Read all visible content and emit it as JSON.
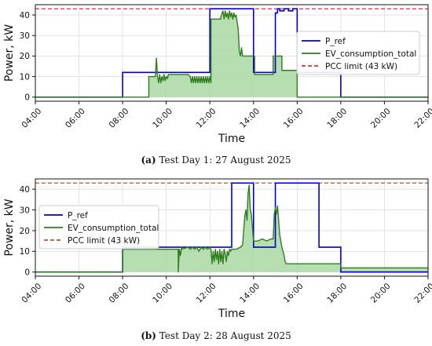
{
  "figure": {
    "charts": [
      {
        "caption_label": "(a)",
        "caption_text": " Test Day 1: 27 August 2025",
        "legend_position": "right"
      },
      {
        "caption_label": "(b)",
        "caption_text": " Test Day 2: 28 August 2025",
        "legend_position": "upper-left"
      }
    ]
  },
  "colors": {
    "p_ref": "#0000cc",
    "ev_line": "#2e7d1f",
    "ev_fill": "#a9d8a3",
    "pcc_a": "#e8293b",
    "pcc_b": "#b5552b"
  },
  "chart_data": [
    {
      "type": "line",
      "xlabel": "Time",
      "ylabel": "Power, kW",
      "xlim": [
        4,
        22
      ],
      "ylim": [
        -2,
        45
      ],
      "xticks": [
        4,
        6,
        8,
        10,
        12,
        14,
        16,
        18,
        20,
        22
      ],
      "xtick_labels": [
        "04:00",
        "06:00",
        "08:00",
        "10:00",
        "12:00",
        "14:00",
        "16:00",
        "18:00",
        "20:00",
        "22:00"
      ],
      "yticks": [
        0,
        10,
        20,
        30,
        40
      ],
      "ytick_labels": [
        "0",
        "10",
        "20",
        "30",
        "40"
      ],
      "grid": true,
      "series": [
        {
          "name": "P_ref",
          "x": [
            4,
            8,
            8,
            12,
            12,
            14,
            14,
            15.0,
            15.0,
            15.1,
            15.1,
            15.2,
            15.2,
            15.4,
            15.4,
            15.6,
            15.6,
            15.8,
            15.8,
            16.0,
            16.0,
            18.0,
            18.0,
            22
          ],
          "values": [
            0,
            0,
            12,
            12,
            43,
            43,
            12,
            12,
            41,
            41,
            43,
            43,
            42,
            42,
            43,
            43,
            42,
            42,
            43,
            43,
            12,
            12,
            0,
            0
          ]
        },
        {
          "name": "EV_consumption_total",
          "x": [
            4,
            9.2,
            9.2,
            9.5,
            9.55,
            9.6,
            9.65,
            9.7,
            9.75,
            9.8,
            9.85,
            9.9,
            9.95,
            10.0,
            10.05,
            10.1,
            10.2,
            10.4,
            10.6,
            10.8,
            11.0,
            11.1,
            11.15,
            11.2,
            11.25,
            11.3,
            11.35,
            11.4,
            11.45,
            11.5,
            11.55,
            11.6,
            11.65,
            11.7,
            11.75,
            11.8,
            11.85,
            11.9,
            11.95,
            12.0,
            12.05,
            12.05,
            12.5,
            12.5,
            12.6,
            12.65,
            12.7,
            12.75,
            12.8,
            12.85,
            12.9,
            12.95,
            13.0,
            13.05,
            13.1,
            13.15,
            13.2,
            13.3,
            13.35,
            13.4,
            13.45,
            13.5,
            13.55,
            14.05,
            14.05,
            14.9,
            14.9,
            15.3,
            15.3,
            16.0,
            16.0,
            22
          ],
          "values": [
            0,
            0,
            10,
            10,
            19,
            10,
            7,
            11,
            7,
            10,
            8,
            11,
            8,
            10,
            9,
            11,
            11,
            11,
            11,
            11,
            11,
            10,
            7,
            10,
            7,
            10,
            7,
            10,
            7,
            10,
            7,
            10,
            7,
            10,
            7,
            10,
            7,
            10,
            7,
            10,
            7,
            38,
            38,
            39,
            42,
            38,
            42,
            39,
            41,
            38,
            42,
            39,
            41,
            38,
            41,
            39,
            40,
            33,
            22,
            20,
            24,
            20,
            20,
            20,
            11,
            11,
            20,
            20,
            13,
            13,
            0,
            0
          ]
        },
        {
          "name": "PCC limit (43 kW)",
          "x": [
            4,
            22
          ],
          "values": [
            43,
            43
          ]
        }
      ]
    },
    {
      "type": "line",
      "xlabel": "Time",
      "ylabel": "Power, kW",
      "xlim": [
        4,
        22
      ],
      "ylim": [
        -2,
        45
      ],
      "xticks": [
        4,
        6,
        8,
        10,
        12,
        14,
        16,
        18,
        20,
        22
      ],
      "xtick_labels": [
        "04:00",
        "06:00",
        "08:00",
        "10:00",
        "12:00",
        "14:00",
        "16:00",
        "18:00",
        "20:00",
        "22:00"
      ],
      "yticks": [
        0,
        10,
        20,
        30,
        40
      ],
      "ytick_labels": [
        "0",
        "10",
        "20",
        "30",
        "40"
      ],
      "grid": true,
      "series": [
        {
          "name": "P_ref",
          "x": [
            4,
            8,
            8,
            13,
            13,
            14,
            14,
            15,
            15,
            17,
            17,
            18,
            18,
            22
          ],
          "values": [
            0,
            0,
            12,
            12,
            43,
            43,
            12,
            12,
            43,
            43,
            12,
            12,
            0,
            0
          ]
        },
        {
          "name": "EV_consumption_total",
          "x": [
            4,
            8,
            8,
            10.55,
            10.55,
            10.6,
            10.65,
            10.7,
            10.7,
            11.0,
            11.1,
            11.2,
            11.3,
            11.4,
            11.5,
            11.6,
            11.7,
            11.8,
            11.9,
            12.0,
            12.05,
            12.1,
            12.15,
            12.2,
            12.25,
            12.3,
            12.35,
            12.4,
            12.45,
            12.5,
            12.55,
            12.6,
            12.65,
            12.7,
            12.75,
            12.8,
            12.85,
            12.9,
            12.95,
            13.0,
            13.2,
            13.4,
            13.5,
            13.6,
            13.65,
            13.7,
            13.75,
            13.8,
            13.85,
            13.9,
            14.0,
            14.1,
            14.2,
            14.4,
            14.6,
            14.8,
            14.9,
            14.95,
            15.0,
            15.05,
            15.1,
            15.15,
            15.2,
            15.3,
            15.4,
            15.45,
            15.5,
            15.6,
            15.7,
            15.8,
            16.0,
            16.5,
            17.0,
            17.5,
            18.0,
            18.0,
            22
          ],
          "values": [
            0,
            0,
            11,
            11,
            0,
            11,
            8,
            12,
            11,
            12,
            11,
            12,
            11,
            12,
            10,
            12,
            11,
            12,
            11,
            12,
            11,
            4,
            10,
            5,
            11,
            6,
            10,
            4,
            11,
            5,
            10,
            4,
            11,
            9,
            5,
            10,
            8,
            11,
            10,
            11,
            11,
            12,
            13,
            27,
            30,
            25,
            38,
            42,
            30,
            28,
            15,
            15,
            15,
            16,
            15,
            16,
            16,
            28,
            31,
            28,
            32,
            25,
            18,
            12,
            8,
            5,
            4,
            4,
            4,
            4,
            4,
            4,
            4,
            4,
            4,
            2,
            2
          ]
        },
        {
          "name": "PCC limit (43 kW)",
          "x": [
            4,
            22
          ],
          "values": [
            43,
            43
          ]
        }
      ]
    }
  ]
}
